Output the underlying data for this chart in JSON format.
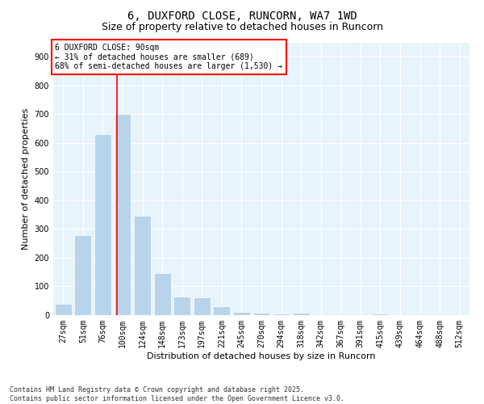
{
  "title1": "6, DUXFORD CLOSE, RUNCORN, WA7 1WD",
  "title2": "Size of property relative to detached houses in Runcorn",
  "xlabel": "Distribution of detached houses by size in Runcorn",
  "ylabel": "Number of detached properties",
  "bins": [
    "27sqm",
    "51sqm",
    "76sqm",
    "100sqm",
    "124sqm",
    "148sqm",
    "173sqm",
    "197sqm",
    "221sqm",
    "245sqm",
    "270sqm",
    "294sqm",
    "318sqm",
    "342sqm",
    "367sqm",
    "391sqm",
    "415sqm",
    "439sqm",
    "464sqm",
    "488sqm",
    "512sqm"
  ],
  "values": [
    40,
    280,
    630,
    700,
    345,
    145,
    65,
    62,
    30,
    10,
    8,
    5,
    8,
    0,
    0,
    0,
    7,
    0,
    0,
    0,
    0
  ],
  "bar_color": "#b8d4ea",
  "vline_color": "red",
  "vline_x_idx": 2.72,
  "annotation_text": "6 DUXFORD CLOSE: 90sqm\n← 31% of detached houses are smaller (689)\n68% of semi-detached houses are larger (1,530) →",
  "annotation_box_color": "white",
  "annotation_box_edgecolor": "red",
  "ylim": [
    0,
    950
  ],
  "yticks": [
    0,
    100,
    200,
    300,
    400,
    500,
    600,
    700,
    800,
    900
  ],
  "bg_color": "#e8f4fc",
  "footnote": "Contains HM Land Registry data © Crown copyright and database right 2025.\nContains public sector information licensed under the Open Government Licence v3.0.",
  "title1_fontsize": 10,
  "title2_fontsize": 9,
  "axis_label_fontsize": 8,
  "tick_fontsize": 7,
  "annot_fontsize": 7,
  "footnote_fontsize": 6
}
